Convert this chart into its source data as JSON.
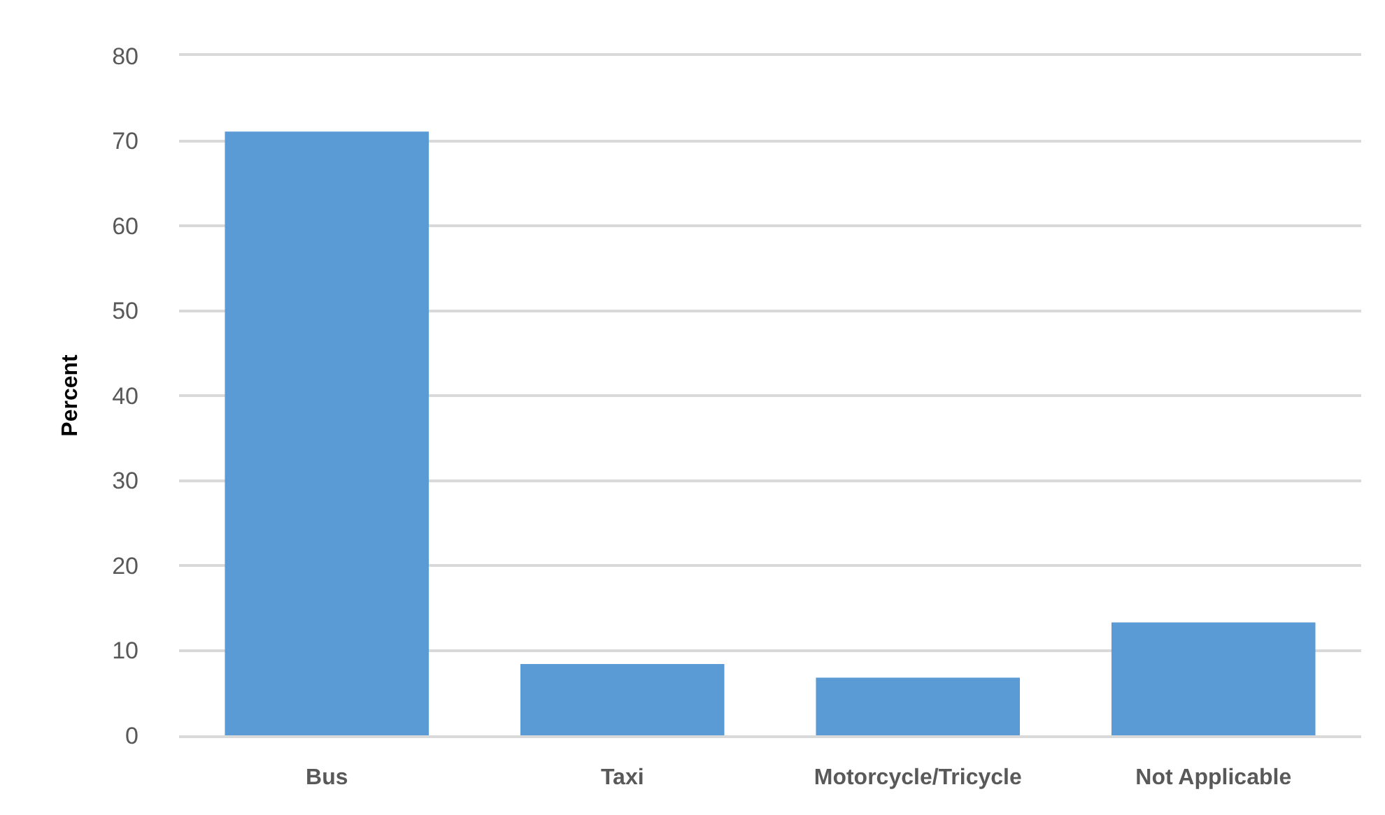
{
  "chart_data": {
    "type": "bar",
    "ylabel": "Percent",
    "categories": [
      "Bus",
      "Taxi",
      "Motorcycle/Tricycle",
      "Not Applicable"
    ],
    "values": [
      71.1,
      8.4,
      6.8,
      13.3
    ],
    "color": "#5b9bd5",
    "ylim": [
      0,
      80
    ],
    "yticks": [
      0,
      10,
      20,
      30,
      40,
      50,
      60,
      70,
      80
    ],
    "grid": "y",
    "legend": false
  }
}
